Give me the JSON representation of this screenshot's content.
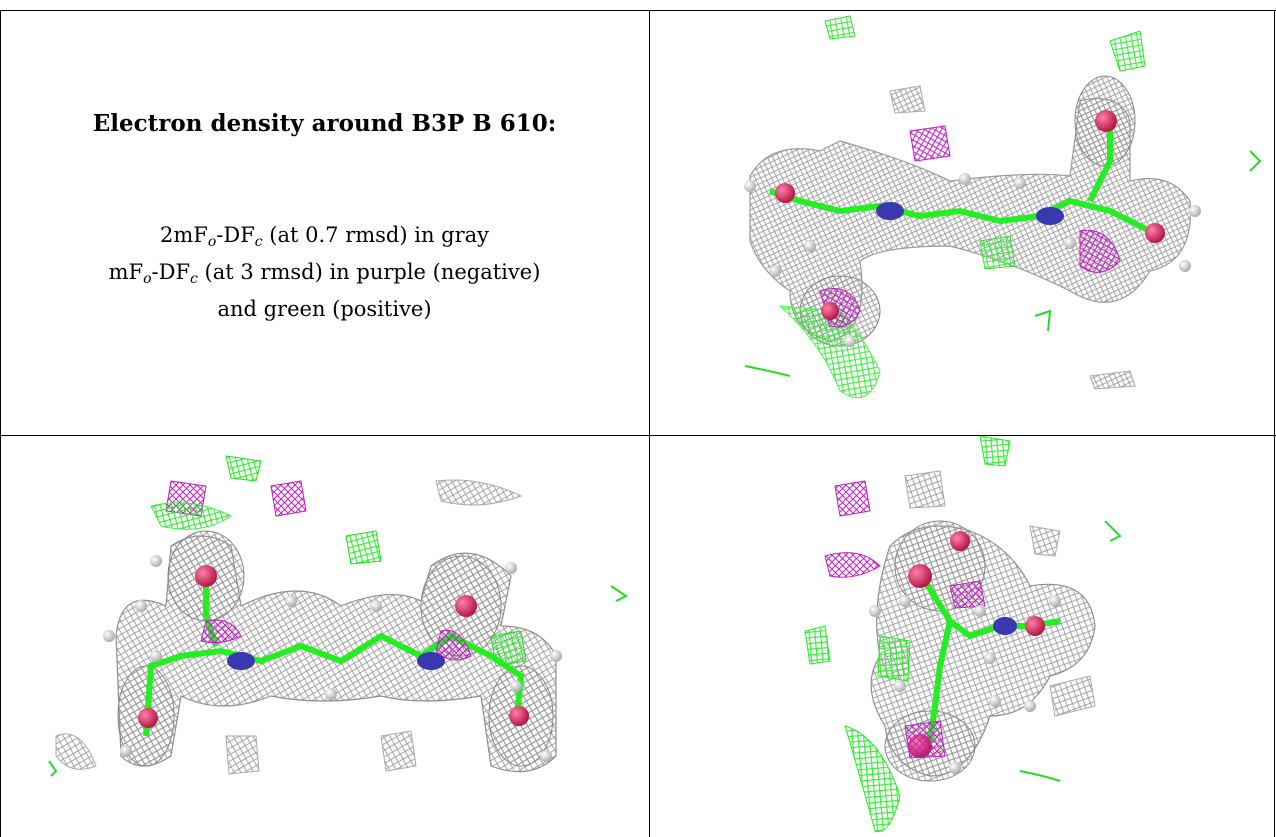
{
  "caption": {
    "title": "Electron density around B3P B 610:",
    "line1_a": "2mF",
    "line1_sub1": "o",
    "line1_b": "-DF",
    "line1_sub2": "c",
    "line1_c": " (at 0.7 rmsd) in gray",
    "line2_a": "mF",
    "line2_sub1": "o",
    "line2_b": "-DF",
    "line2_sub2": "c",
    "line2_c": " (at 3 rmsd) in purple (negative)",
    "line3": "and green (positive)"
  },
  "colors": {
    "mesh_gray": "#9a9a9a",
    "mesh_purple": "#c020c0",
    "mesh_green": "#22ee22",
    "oxygen": "#e0185a",
    "nitrogen": "#3838b0",
    "hydrogen": "#e8e8e8"
  },
  "panels": [
    "view-1",
    "view-2",
    "view-3"
  ]
}
